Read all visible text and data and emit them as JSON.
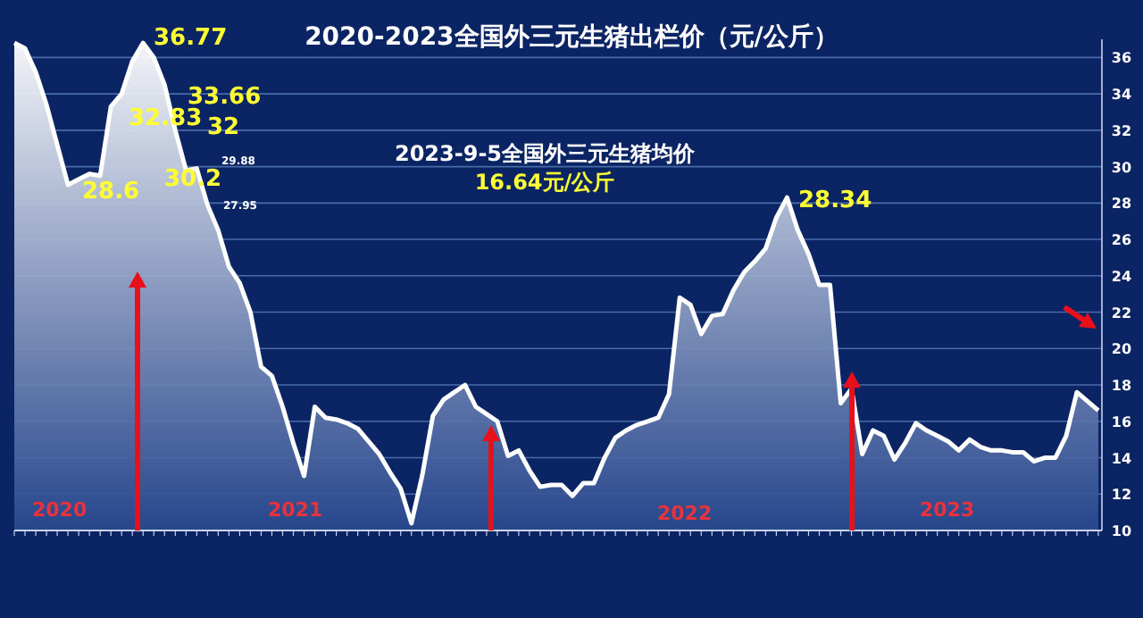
{
  "chart_data": {
    "type": "area",
    "title": "2020-2023全国外三元生猪出栏价（元/公斤）",
    "categories": [
      null,
      null,
      null,
      null,
      null,
      null,
      null,
      null,
      null,
      null,
      null,
      null,
      null,
      null,
      null,
      null,
      null,
      null,
      null,
      null,
      null,
      null,
      null,
      null,
      null,
      null,
      null,
      null,
      null,
      null,
      null,
      null,
      null,
      null,
      null,
      null,
      null,
      null,
      null,
      null,
      null,
      null,
      null,
      null,
      null,
      null,
      null,
      null,
      null,
      null,
      null,
      null,
      null,
      null,
      null,
      null,
      null,
      null,
      null,
      null,
      null,
      null,
      null,
      null,
      null,
      null,
      null,
      null,
      null,
      null,
      null,
      null,
      null,
      null,
      null,
      null,
      null,
      null,
      null,
      null,
      null,
      null,
      null,
      null,
      null,
      null,
      null,
      null,
      null,
      null,
      null,
      null,
      null,
      null,
      null,
      null,
      null,
      null,
      null,
      null,
      null,
      null
    ],
    "series": [
      {
        "color": "#ffffff",
        "values": [
          36.8,
          36.5,
          35.2,
          33.4,
          31.2,
          29.0,
          29.3,
          29.6,
          29.5,
          33.3,
          34.0,
          35.8,
          36.8,
          36.0,
          34.5,
          32.0,
          29.8,
          29.9,
          27.9,
          26.5,
          24.5,
          23.6,
          22.0,
          19.0,
          18.5,
          16.8,
          14.8,
          13.0,
          16.8,
          16.2,
          16.1,
          15.9,
          15.6,
          14.9,
          14.2,
          13.2,
          12.3,
          10.4,
          13.0,
          16.3,
          17.2,
          17.6,
          18.0,
          16.8,
          16.4,
          16.0,
          14.1,
          14.4,
          13.3,
          12.4,
          12.5,
          12.5,
          11.9,
          12.6,
          12.6,
          14.0,
          15.1,
          15.5,
          15.8,
          16.0,
          16.2,
          17.5,
          22.8,
          22.4,
          20.8,
          21.8,
          21.9,
          23.2,
          24.2,
          24.8,
          25.5,
          27.2,
          28.3,
          26.5,
          25.2,
          23.5,
          23.5,
          17.0,
          17.8,
          14.2,
          15.5,
          15.2,
          13.9,
          14.8,
          15.9,
          15.5,
          15.2,
          14.9,
          14.4,
          15.0,
          14.6,
          14.4,
          14.4,
          14.3,
          14.3,
          13.8,
          14.0,
          14.0,
          15.2,
          17.6,
          17.1,
          16.6
        ]
      }
    ],
    "ylim": [
      10,
      37
    ],
    "yticks": [
      10,
      12,
      14,
      16,
      18,
      20,
      22,
      24,
      26,
      28,
      30,
      32,
      34,
      36
    ],
    "grid": "y",
    "annotations": [
      "36.77",
      "33.66",
      "32.83",
      "32",
      "28.6",
      "30.2",
      "29.88",
      "27.95",
      "28.34",
      "2020",
      "2021",
      "2022",
      "2023",
      "2023-9-5全国外三元生猪均价",
      "16.64元/公斤"
    ]
  }
}
